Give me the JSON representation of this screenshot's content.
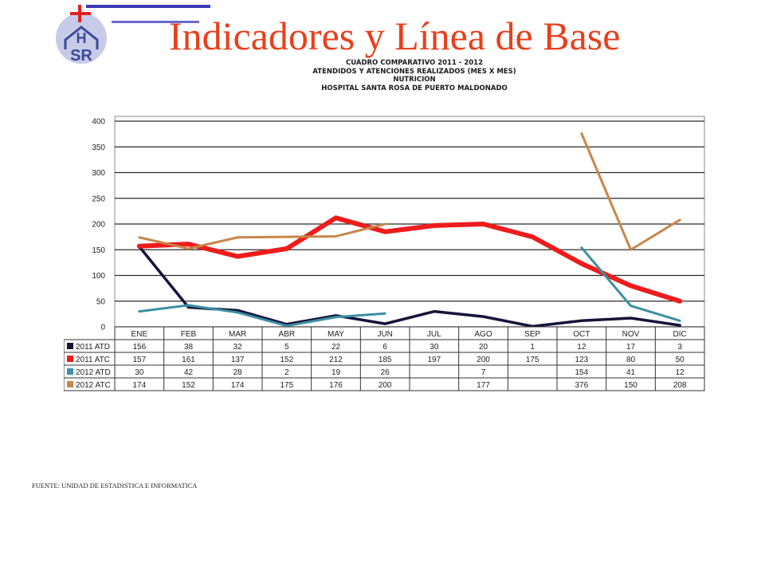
{
  "page": {
    "title": "Indicadores y Línea de Base",
    "logo_text": "HSR",
    "footer_source": "FUENTE: UNIDAD DE ESTADISTICA E INFORMATICA"
  },
  "chart_header": [
    "CUADRO COMPARATIVO 2011 - 2012",
    "ATENDIDOS Y ATENCIONES REALIZADOS (MES X MES)",
    "NUTRICION",
    "HOSPITAL SANTA ROSA DE PUERTO MALDONADO"
  ],
  "colors": {
    "title": "#e8401c",
    "logo_cross": "#e02020",
    "logo_letters": "#3a4a9a",
    "logo_circle": "#c8cbe8",
    "2011 ATD": "#14143c",
    "2011 ATC": "#ee1c1c",
    "2012 ATD": "#3d8fa3",
    "2012 ATC": "#c8864a"
  },
  "chart_data": {
    "type": "line",
    "title": "CUADRO COMPARATIVO 2011 - 2012",
    "categories": [
      "ENE",
      "FEB",
      "MAR",
      "ABR",
      "MAY",
      "JUN",
      "JUL",
      "AGO",
      "SEP",
      "OCT",
      "NOV",
      "DIC"
    ],
    "ylim": [
      0,
      400
    ],
    "yticks": [
      0,
      50,
      100,
      150,
      200,
      250,
      300,
      350,
      400
    ],
    "grid": true,
    "legend": "data-table-left",
    "series": [
      {
        "name": "2011 ATD",
        "values": [
          156,
          38,
          32,
          5,
          22,
          6,
          30,
          20,
          1,
          12,
          17,
          3
        ]
      },
      {
        "name": "2011 ATC",
        "values": [
          157,
          161,
          137,
          152,
          212,
          185,
          197,
          200,
          175,
          123,
          80,
          50
        ]
      },
      {
        "name": "2012 ATD",
        "values": [
          30,
          42,
          28,
          2,
          19,
          26,
          null,
          7,
          null,
          154,
          41,
          12
        ]
      },
      {
        "name": "2012 ATC",
        "values": [
          174,
          152,
          174,
          175,
          176,
          200,
          null,
          177,
          null,
          376,
          150,
          208
        ]
      }
    ]
  }
}
